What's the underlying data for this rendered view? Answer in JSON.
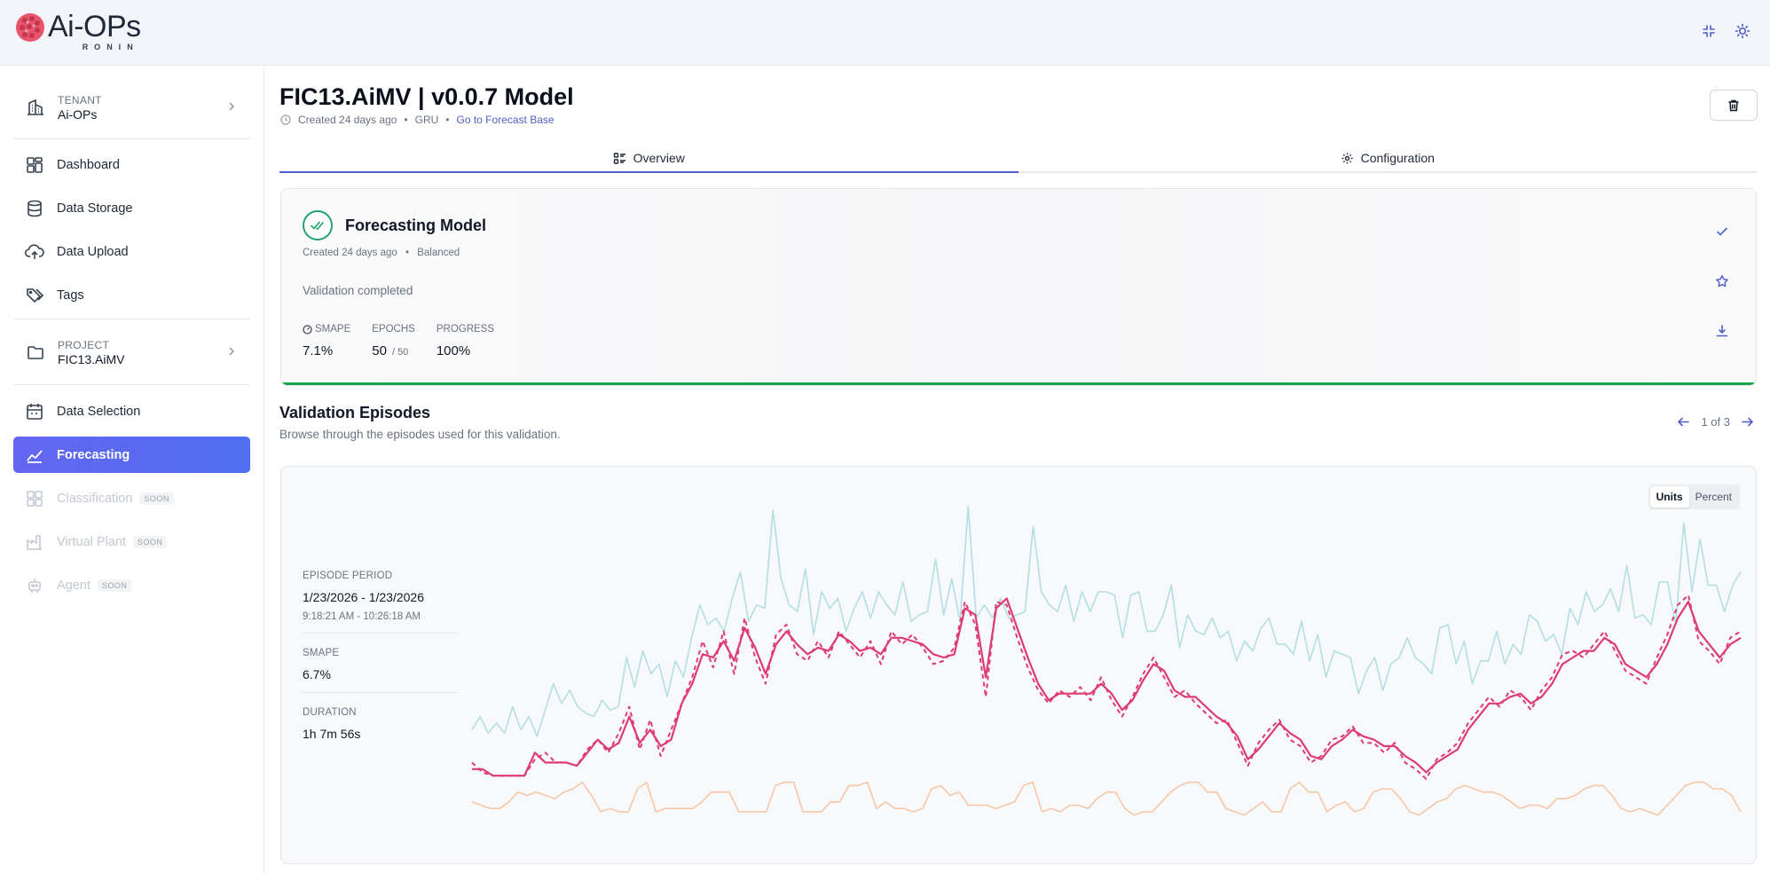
{
  "brand": {
    "name": "Ai-OPs",
    "sub": "RONIN"
  },
  "sidebar": {
    "tenant": {
      "label": "TENANT",
      "value": "Ai-OPs"
    },
    "project": {
      "label": "PROJECT",
      "value": "FIC13.AiMV"
    },
    "items": [
      {
        "label": "Dashboard",
        "icon": "dashboard-icon"
      },
      {
        "label": "Data Storage",
        "icon": "database-icon"
      },
      {
        "label": "Data Upload",
        "icon": "cloud-upload-icon"
      },
      {
        "label": "Tags",
        "icon": "tags-icon"
      },
      {
        "label": "Data Selection",
        "icon": "calendar-icon"
      },
      {
        "label": "Forecasting",
        "icon": "line-chart-icon",
        "active": true
      },
      {
        "label": "Classification",
        "icon": "grid-icon",
        "soon": "SOON"
      },
      {
        "label": "Virtual Plant",
        "icon": "factory-icon",
        "soon": "SOON"
      },
      {
        "label": "Agent",
        "icon": "robot-icon",
        "soon": "SOON"
      }
    ]
  },
  "page": {
    "title": "FIC13.AiMV | v0.0.7 Model",
    "created": "Created 24 days ago",
    "model_type": "GRU",
    "forecast_link": "Go to Forecast Base"
  },
  "tabs": [
    {
      "label": "Overview",
      "active": true
    },
    {
      "label": "Configuration",
      "active": false
    }
  ],
  "model_card": {
    "title": "Forecasting Model",
    "created": "Created 24 days ago",
    "mode": "Balanced",
    "status": "Validation completed",
    "smape_label": "SMAPE",
    "smape": "7.1%",
    "epochs_label": "EPOCHS",
    "epochs": "50",
    "epochs_total": "/ 50",
    "progress_label": "PROGRESS",
    "progress": "100%",
    "accent": "#16a34a"
  },
  "episodes": {
    "title": "Validation Episodes",
    "subtitle": "Browse through the episodes used for this validation.",
    "pager": "1 of 3",
    "units_label": "Units",
    "percent_label": "Percent",
    "period_label": "EPISODE PERIOD",
    "period": "1/23/2026 - 1/23/2026",
    "time_range": "9:18:21 AM - 10:26:18 AM",
    "smape_label": "SMAPE",
    "smape": "6.7%",
    "duration_label": "DURATION",
    "duration": "1h 7m 56s"
  },
  "chart_data": {
    "type": "line",
    "ylim": [
      0,
      100
    ],
    "grid": false,
    "legend": "none",
    "colors": {
      "primary": "#dc3c73",
      "secondary": "#b3dfe3",
      "tertiary": "#f6c7a9"
    },
    "series": [
      {
        "style": "solid",
        "color": "#b3dfe3",
        "values": [
          28,
          32,
          27,
          30,
          27,
          35,
          28,
          32,
          26,
          34,
          42,
          36,
          40,
          35,
          33,
          32,
          37,
          34,
          35,
          50,
          41,
          52,
          45,
          48,
          38,
          49,
          44,
          56,
          66,
          60,
          62,
          58,
          68,
          76,
          61,
          66,
          65,
          95,
          74,
          66,
          64,
          77,
          57,
          70,
          65,
          68,
          58,
          65,
          70,
          62,
          70,
          66,
          63,
          73,
          61,
          63,
          64,
          80,
          63,
          74,
          61,
          96,
          62,
          66,
          62,
          68,
          62,
          63,
          64,
          90,
          70,
          66,
          64,
          72,
          61,
          70,
          64,
          70,
          70,
          69,
          56,
          69,
          70,
          58,
          58,
          63,
          72,
          53,
          63,
          58,
          57,
          62,
          56,
          58,
          49,
          55,
          52,
          59,
          62,
          54,
          54,
          51,
          61,
          49,
          57,
          44,
          52,
          51,
          50,
          39,
          46,
          50,
          40,
          48,
          50,
          56,
          50,
          48,
          45,
          59,
          60,
          48,
          55,
          42,
          49,
          49,
          58,
          48,
          54,
          51,
          63,
          61,
          55,
          57,
          51,
          65,
          60,
          70,
          64,
          66,
          71,
          64,
          78,
          62,
          63,
          60,
          73,
          73,
          60,
          91,
          70,
          86,
          72,
          72,
          64,
          72,
          76
        ]
      },
      {
        "style": "solid",
        "color": "#dc3c73",
        "values": [
          16,
          16,
          14,
          14,
          14,
          14,
          21,
          18,
          18,
          18,
          17,
          21,
          25,
          22,
          24,
          32,
          24,
          28,
          23,
          25,
          36,
          42,
          51,
          50,
          55,
          49,
          59,
          53,
          45,
          54,
          58,
          54,
          51,
          53,
          52,
          57,
          55,
          52,
          53,
          51,
          56,
          56,
          55,
          54,
          51,
          50,
          51,
          65,
          63,
          44,
          65,
          68,
          59,
          50,
          42,
          37,
          39,
          39,
          39,
          39,
          42,
          39,
          34,
          37,
          43,
          48,
          46,
          40,
          38,
          38,
          35,
          32,
          30,
          26,
          19,
          22,
          26,
          30,
          27,
          25,
          20,
          19,
          23,
          25,
          28,
          26,
          25,
          23,
          23,
          20,
          18,
          15,
          18,
          20,
          22,
          28,
          32,
          36,
          36,
          38,
          39,
          36,
          38,
          42,
          48,
          50,
          52,
          52,
          56,
          54,
          48,
          46,
          44,
          48,
          54,
          62,
          67,
          58,
          54,
          50,
          54,
          56
        ]
      },
      {
        "style": "dashed",
        "color": "#dc3c73",
        "values": [
          18,
          15,
          14,
          14,
          14,
          14,
          19,
          21,
          18,
          18,
          17,
          22,
          25,
          21,
          27,
          35,
          22,
          31,
          20,
          28,
          36,
          44,
          55,
          47,
          58,
          45,
          62,
          50,
          42,
          57,
          60,
          51,
          49,
          55,
          50,
          58,
          54,
          50,
          55,
          48,
          58,
          54,
          57,
          53,
          48,
          49,
          53,
          67,
          60,
          38,
          67,
          66,
          56,
          47,
          40,
          36,
          40,
          38,
          41,
          37,
          44,
          37,
          32,
          38,
          45,
          50,
          44,
          38,
          40,
          36,
          33,
          30,
          31,
          24,
          17,
          24,
          28,
          31,
          25,
          23,
          18,
          20,
          25,
          26,
          29,
          24,
          24,
          21,
          24,
          18,
          16,
          13,
          19,
          21,
          24,
          30,
          34,
          38,
          35,
          40,
          38,
          34,
          40,
          44,
          51,
          52,
          50,
          54,
          58,
          52,
          46,
          44,
          42,
          50,
          57,
          66,
          69,
          55,
          52,
          48,
          56,
          58
        ]
      },
      {
        "style": "solid",
        "color": "#f6c7a9",
        "values": [
          6,
          5,
          4,
          4,
          6,
          9,
          8,
          9,
          8,
          7,
          9,
          10,
          12,
          8,
          3,
          4,
          3,
          3,
          10,
          12,
          3,
          4,
          4,
          4,
          4,
          6,
          9,
          9,
          9,
          3,
          3,
          3,
          3,
          11,
          12,
          12,
          3,
          3,
          3,
          6,
          6,
          11,
          11,
          12,
          4,
          6,
          4,
          4,
          3,
          4,
          10,
          11,
          8,
          9,
          5,
          5,
          5,
          4,
          5,
          6,
          11,
          12,
          3,
          4,
          3,
          5,
          5,
          4,
          7,
          9,
          9,
          4,
          2,
          3,
          3,
          6,
          9,
          11,
          12,
          12,
          9,
          9,
          4,
          3,
          2,
          4,
          6,
          3,
          3,
          10,
          12,
          9,
          9,
          3,
          5,
          6,
          3,
          4,
          9,
          10,
          10,
          7,
          3,
          2,
          4,
          6,
          7,
          10,
          11,
          10,
          9,
          9,
          8,
          6,
          4,
          5,
          5,
          4,
          7,
          7,
          8,
          10,
          11,
          11,
          8,
          4,
          3,
          4,
          3,
          2,
          5,
          8,
          11,
          12,
          12,
          10,
          10,
          8,
          3
        ]
      }
    ]
  }
}
